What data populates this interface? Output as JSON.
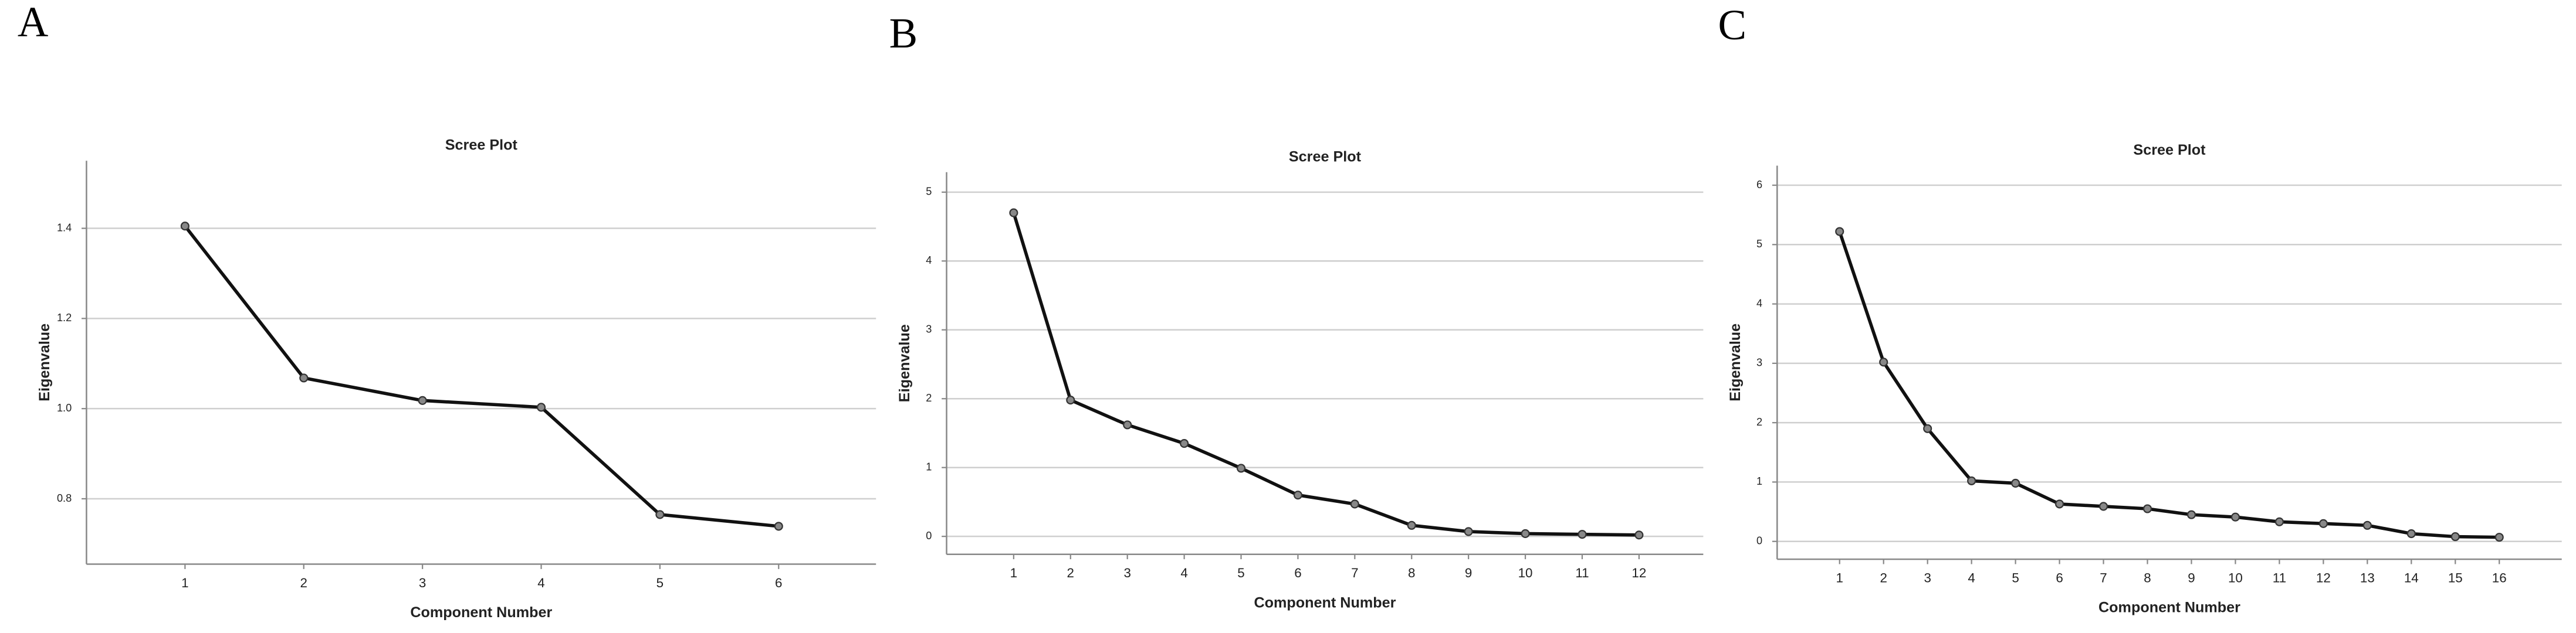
{
  "chart_data": [
    {
      "type": "line",
      "label": "A",
      "title": "Scree Plot",
      "xlabel": "Component Number",
      "ylabel": "Eigenvalue",
      "x": [
        1,
        2,
        3,
        4,
        5,
        6
      ],
      "xlim": [
        0.17,
        6.82
      ],
      "xticks": [
        1,
        2,
        3,
        4,
        5,
        6
      ],
      "values": [
        1.405,
        1.068,
        1.018,
        1.003,
        0.765,
        0.739
      ],
      "ylim": [
        0.655,
        1.55
      ],
      "yticks": [
        0.8,
        {
          "value": 1.0,
          "label": "1.0"
        },
        1.2,
        1.4
      ],
      "grid": true,
      "color": "#111111"
    },
    {
      "type": "line",
      "label": "B",
      "title": "Scree Plot",
      "xlabel": "Component Number",
      "ylabel": "Eigenvalue",
      "x": [
        1,
        2,
        3,
        4,
        5,
        6,
        7,
        8,
        9,
        10,
        11,
        12
      ],
      "xlim": [
        -0.18,
        13.13
      ],
      "xticks": [
        1,
        2,
        3,
        4,
        5,
        6,
        7,
        8,
        9,
        10,
        11,
        12
      ],
      "values": [
        4.7,
        1.98,
        1.62,
        1.35,
        0.99,
        0.6,
        0.47,
        0.16,
        0.07,
        0.04,
        0.03,
        0.02
      ],
      "ylim": [
        -0.26,
        5.29
      ],
      "yticks": [
        0,
        1,
        2,
        3,
        4,
        5
      ],
      "grid": true,
      "color": "#111111"
    },
    {
      "type": "line",
      "label": "C",
      "title": "Scree Plot",
      "xlabel": "Component Number",
      "ylabel": "Eigenvalue",
      "x": [
        1,
        2,
        3,
        4,
        5,
        6,
        7,
        8,
        9,
        10,
        11,
        12,
        13,
        14,
        15,
        16
      ],
      "xlim": [
        -0.42,
        17.42
      ],
      "xticks": [
        1,
        2,
        3,
        4,
        5,
        6,
        7,
        8,
        9,
        10,
        11,
        12,
        13,
        14,
        15,
        16
      ],
      "values": [
        5.22,
        3.02,
        1.9,
        1.02,
        0.98,
        0.63,
        0.59,
        0.55,
        0.45,
        0.41,
        0.33,
        0.3,
        0.27,
        0.13,
        0.08,
        0.07
      ],
      "ylim": [
        -0.3,
        6.33
      ],
      "yticks": [
        0,
        1,
        2,
        3,
        4,
        5,
        6
      ],
      "grid": true,
      "color": "#111111"
    }
  ]
}
